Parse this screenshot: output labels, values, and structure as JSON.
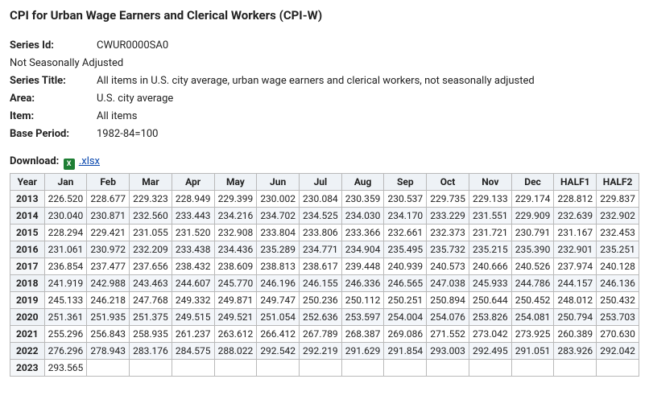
{
  "title": "CPI for Urban Wage Earners and Clerical Workers (CPI-W)",
  "meta": {
    "series_id_label": "Series Id:",
    "series_id": "CWUR0000SA0",
    "adjustment": "Not Seasonally Adjusted",
    "series_title_label": "Series Title:",
    "series_title": "All items in U.S. city average, urban wage earners and clerical workers, not seasonally adjusted",
    "area_label": "Area:",
    "area": "U.S. city average",
    "item_label": "Item:",
    "item": "All items",
    "base_period_label": "Base Period:",
    "base_period": "1982-84=100"
  },
  "download": {
    "label": "Download:",
    "icon_text": "X",
    "link_text": ".xlsx"
  },
  "table": {
    "columns": [
      "Year",
      "Jan",
      "Feb",
      "Mar",
      "Apr",
      "May",
      "Jun",
      "Jul",
      "Aug",
      "Sep",
      "Oct",
      "Nov",
      "Dec",
      "HALF1",
      "HALF2"
    ],
    "rows": [
      [
        "2013",
        "226.520",
        "228.677",
        "229.323",
        "228.949",
        "229.399",
        "230.002",
        "230.084",
        "230.359",
        "230.537",
        "229.735",
        "229.133",
        "229.174",
        "228.812",
        "229.837"
      ],
      [
        "2014",
        "230.040",
        "230.871",
        "232.560",
        "233.443",
        "234.216",
        "234.702",
        "234.525",
        "234.030",
        "234.170",
        "233.229",
        "231.551",
        "229.909",
        "232.639",
        "232.902"
      ],
      [
        "2015",
        "228.294",
        "229.421",
        "231.055",
        "231.520",
        "232.908",
        "233.804",
        "233.806",
        "233.366",
        "232.661",
        "232.373",
        "231.721",
        "230.791",
        "231.167",
        "232.453"
      ],
      [
        "2016",
        "231.061",
        "230.972",
        "232.209",
        "233.438",
        "234.436",
        "235.289",
        "234.771",
        "234.904",
        "235.495",
        "235.732",
        "235.215",
        "235.390",
        "232.901",
        "235.251"
      ],
      [
        "2017",
        "236.854",
        "237.477",
        "237.656",
        "238.432",
        "238.609",
        "238.813",
        "238.617",
        "239.448",
        "240.939",
        "240.573",
        "240.666",
        "240.526",
        "237.974",
        "240.128"
      ],
      [
        "2018",
        "241.919",
        "242.988",
        "243.463",
        "244.607",
        "245.770",
        "246.196",
        "246.155",
        "246.336",
        "246.565",
        "247.038",
        "245.933",
        "244.786",
        "244.157",
        "246.136"
      ],
      [
        "2019",
        "245.133",
        "246.218",
        "247.768",
        "249.332",
        "249.871",
        "249.747",
        "250.236",
        "250.112",
        "250.251",
        "250.894",
        "250.644",
        "250.452",
        "248.012",
        "250.432"
      ],
      [
        "2020",
        "251.361",
        "251.935",
        "251.375",
        "249.515",
        "249.521",
        "251.054",
        "252.636",
        "253.597",
        "254.004",
        "254.076",
        "253.826",
        "254.081",
        "250.794",
        "253.703"
      ],
      [
        "2021",
        "255.296",
        "256.843",
        "258.935",
        "261.237",
        "263.612",
        "266.412",
        "267.789",
        "268.387",
        "269.086",
        "271.552",
        "273.042",
        "273.925",
        "260.389",
        "270.630"
      ],
      [
        "2022",
        "276.296",
        "278.943",
        "283.176",
        "284.575",
        "288.022",
        "292.542",
        "292.219",
        "291.629",
        "291.854",
        "293.003",
        "292.495",
        "291.051",
        "283.926",
        "292.042"
      ],
      [
        "2023",
        "293.565",
        "",
        "",
        "",
        "",
        "",
        "",
        "",
        "",
        "",
        "",
        "",
        "",
        ""
      ]
    ],
    "header_bg": "#eef2f6",
    "border_color": "#b9b9b9",
    "alt_row_bg": "#f3f6fa"
  }
}
